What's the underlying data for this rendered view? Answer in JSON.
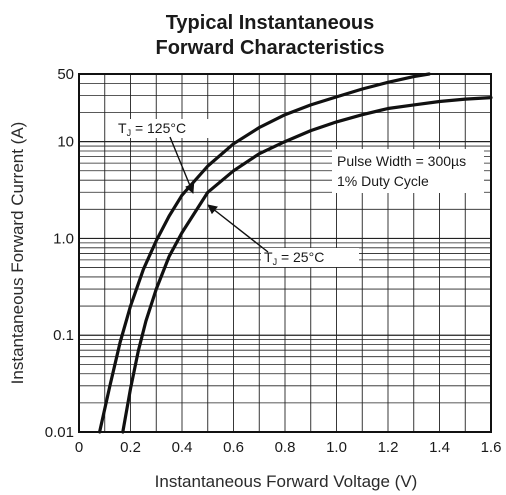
{
  "chart_data": {
    "type": "line",
    "title_line1": "Typical Instantaneous",
    "title_line2": "Forward Characteristics",
    "xlabel": "Instantaneous Forward Voltage (V)",
    "ylabel": "Instantaneous Forward Current (A)",
    "xlim": [
      0,
      1.6
    ],
    "ylim": [
      0.01,
      50
    ],
    "yscale": "log",
    "grid": true,
    "x_ticks": [
      "0",
      "0.2",
      "0.4",
      "0.6",
      "0.8",
      "1.0",
      "1.2",
      "1.4",
      "1.6"
    ],
    "y_ticks": [
      "0.01",
      "0.1",
      "1.0",
      "10",
      "50"
    ],
    "series": [
      {
        "name": "TJ = 125°C",
        "label_prefix": "T",
        "label_sub": "J",
        "label_suffix": " = 125°C",
        "x": [
          0.08,
          0.12,
          0.16,
          0.2,
          0.25,
          0.3,
          0.35,
          0.4,
          0.5,
          0.6,
          0.7,
          0.8,
          0.9,
          1.0,
          1.1,
          1.2,
          1.3,
          1.36
        ],
        "y": [
          0.01,
          0.03,
          0.085,
          0.2,
          0.48,
          0.95,
          1.7,
          2.8,
          5.6,
          9.5,
          14,
          19,
          24,
          29,
          35,
          41,
          47,
          50
        ]
      },
      {
        "name": "TJ = 25°C",
        "label_prefix": "T",
        "label_sub": "J",
        "label_suffix": " = 25°C",
        "x": [
          0.17,
          0.2,
          0.23,
          0.26,
          0.3,
          0.35,
          0.4,
          0.5,
          0.6,
          0.7,
          0.8,
          0.9,
          1.0,
          1.1,
          1.2,
          1.3,
          1.4,
          1.5,
          1.6
        ],
        "y": [
          0.01,
          0.028,
          0.068,
          0.14,
          0.3,
          0.65,
          1.15,
          3.0,
          5.0,
          7.5,
          10,
          13,
          16,
          19,
          22,
          24,
          26,
          27.5,
          28.5
        ]
      }
    ],
    "annotation_lines": [
      "Pulse Width = 300µs",
      "1% Duty Cycle"
    ]
  }
}
